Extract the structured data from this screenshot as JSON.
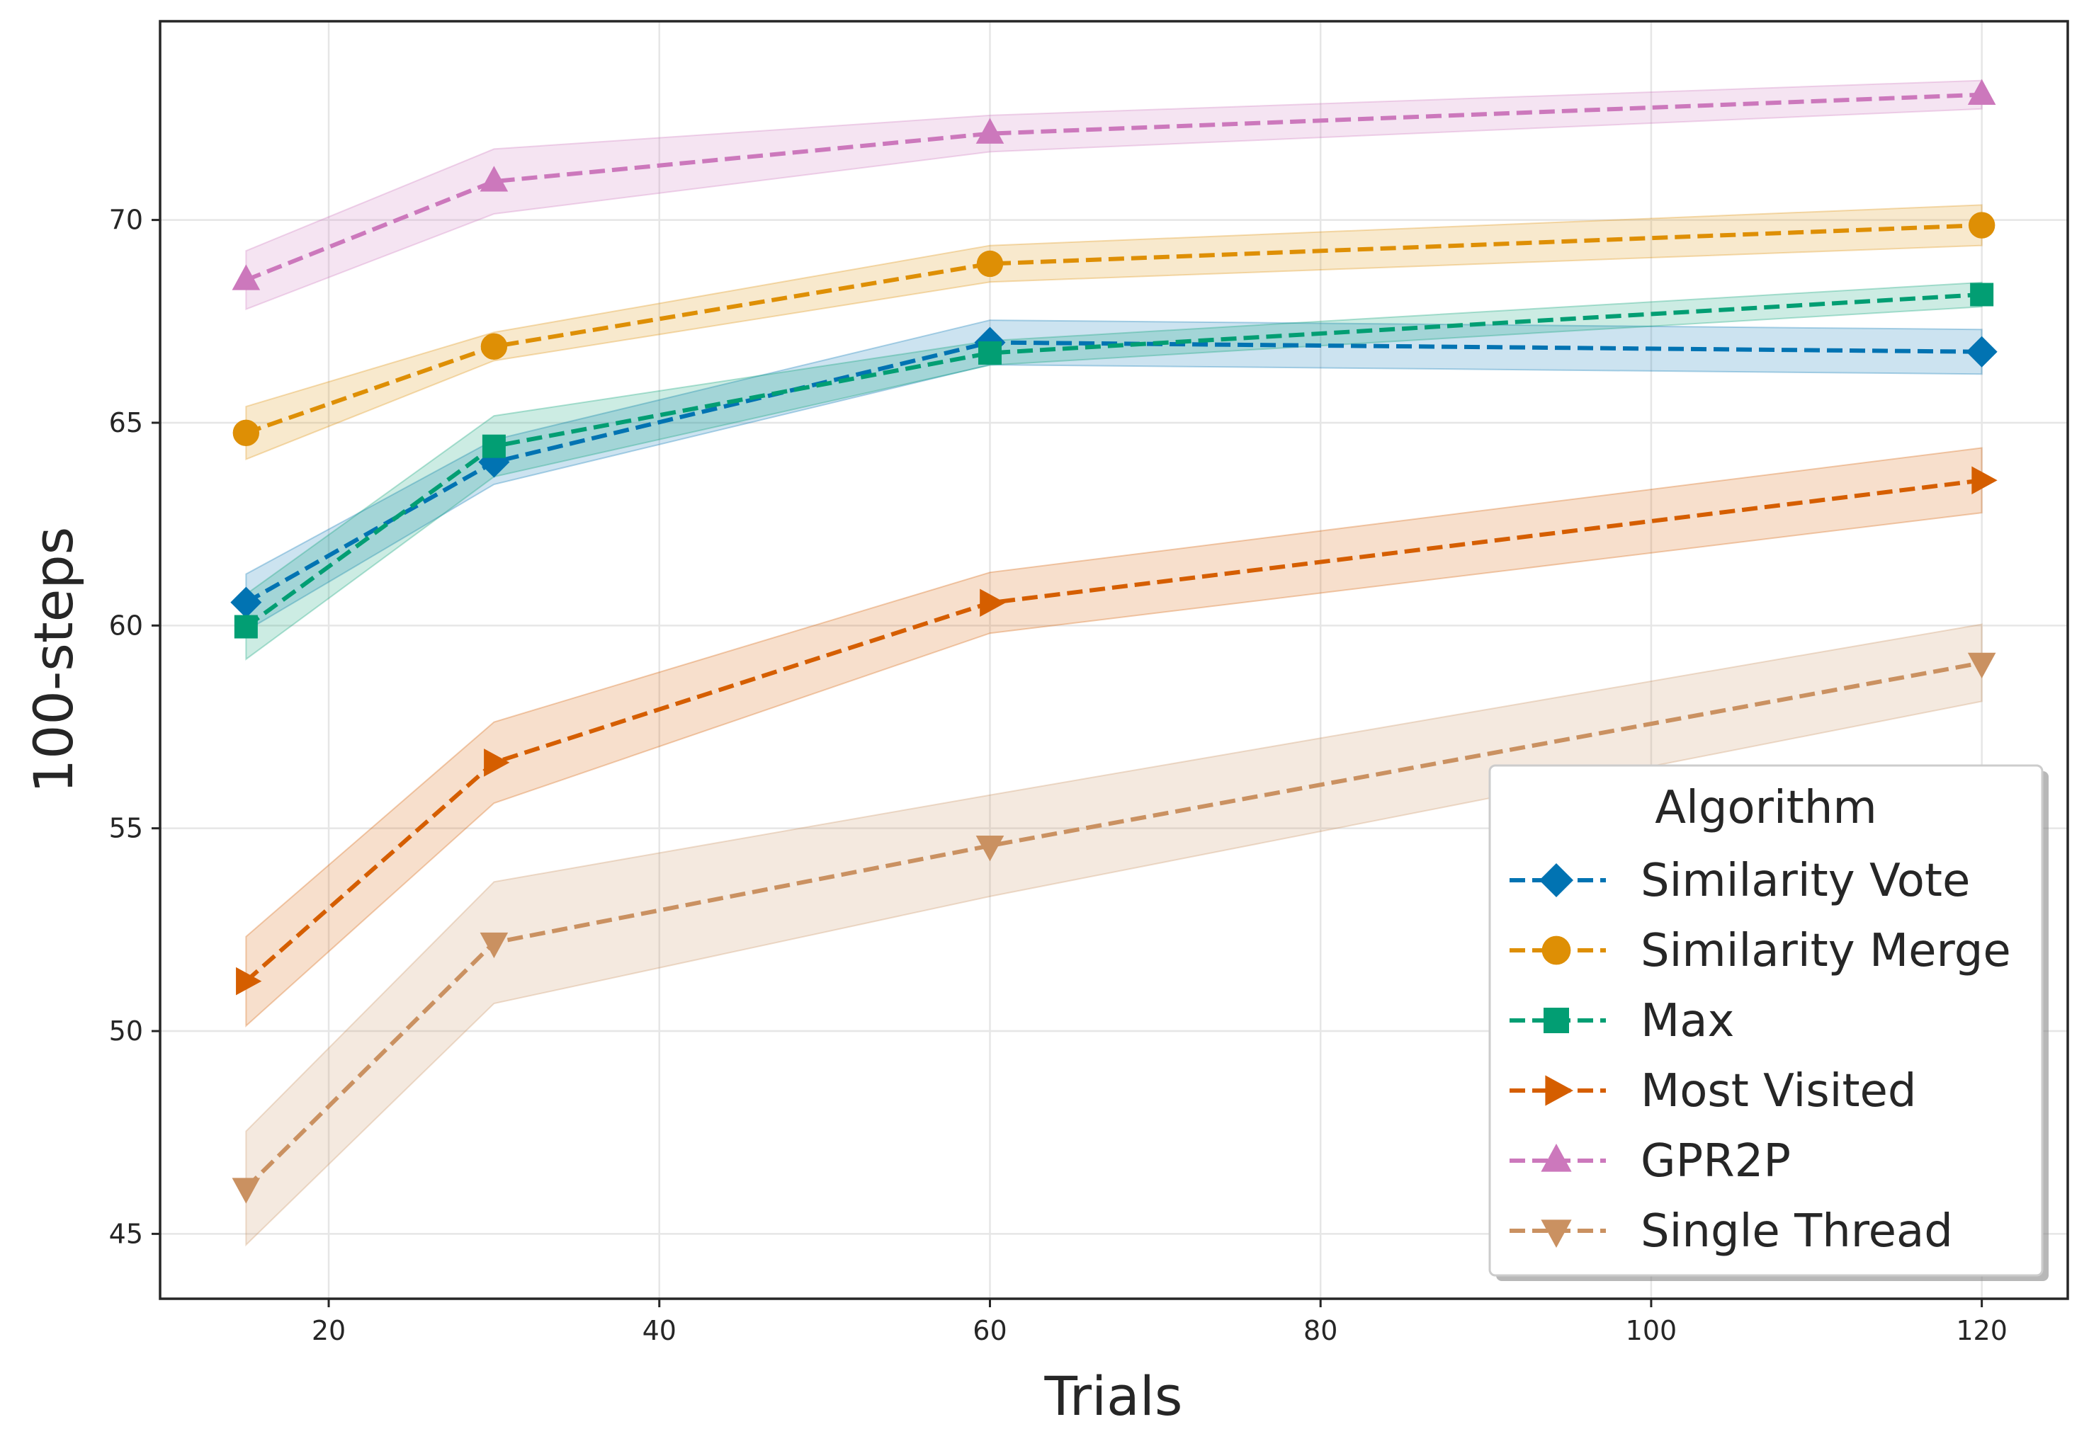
{
  "chart_data": {
    "type": "line",
    "title": "",
    "xlabel": "Trials",
    "ylabel": "100-steps",
    "xlim": [
      9.8,
      125.2
    ],
    "ylim": [
      43.4,
      74.9
    ],
    "xticks": [
      20,
      40,
      60,
      80,
      100,
      120
    ],
    "yticks": [
      45,
      50,
      55,
      60,
      65,
      70
    ],
    "grid": true,
    "legend": {
      "title": "Algorithm",
      "placement": "lower-right"
    },
    "x": [
      15,
      30,
      60,
      120
    ],
    "series": [
      {
        "name": "Similarity Vote",
        "color": "#0173b2",
        "marker": "diamond",
        "values": [
          60.57,
          64.03,
          66.98,
          66.75
        ],
        "ci": [
          0.7,
          0.55,
          0.55,
          0.55
        ]
      },
      {
        "name": "Similarity Merge",
        "color": "#de8f05",
        "marker": "circle",
        "values": [
          64.75,
          66.88,
          68.92,
          69.87
        ],
        "ci": [
          0.65,
          0.35,
          0.45,
          0.5
        ]
      },
      {
        "name": "Max",
        "color": "#029e73",
        "marker": "square",
        "values": [
          59.97,
          64.42,
          66.72,
          68.16
        ],
        "ci": [
          0.8,
          0.75,
          0.3,
          0.3
        ]
      },
      {
        "name": "Most Visited",
        "color": "#d55e00",
        "marker": "triangle-right",
        "values": [
          51.23,
          56.62,
          60.56,
          63.58
        ],
        "ci": [
          1.1,
          1.0,
          0.75,
          0.8
        ]
      },
      {
        "name": "GPR2P",
        "color": "#cc78bc",
        "marker": "triangle-up",
        "values": [
          68.52,
          70.95,
          72.13,
          73.09
        ],
        "ci": [
          0.72,
          0.8,
          0.45,
          0.35
        ]
      },
      {
        "name": "Single Thread",
        "color": "#ca9161",
        "marker": "triangle-down",
        "values": [
          46.13,
          52.18,
          54.57,
          59.08
        ],
        "ci": [
          1.4,
          1.5,
          1.25,
          0.95
        ]
      }
    ]
  }
}
